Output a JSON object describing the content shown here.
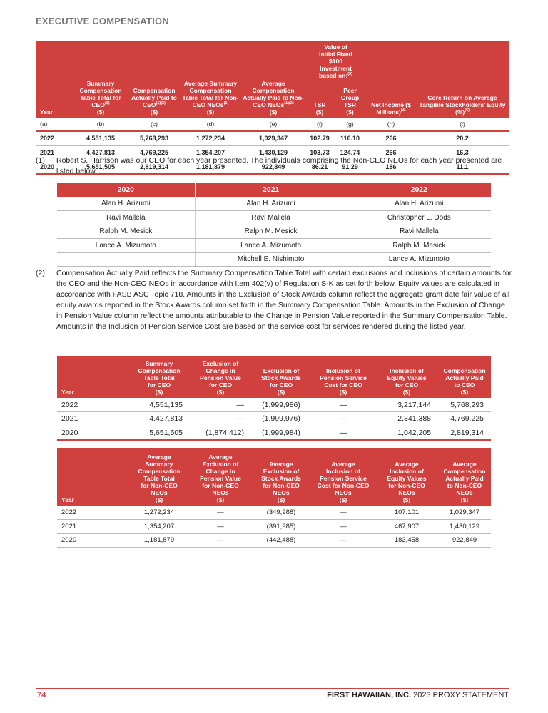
{
  "section_title": "EXECUTIVE COMPENSATION",
  "table1": {
    "headers": {
      "year": "Year",
      "b": "Summary Compensation Table Total for CEO",
      "b_sup": "(1)",
      "c": "Compensation Actually Paid to CEO",
      "c_sup": "(1)(2)",
      "d": "Average Summary Compensation Table Total for Non-CEO NEOs",
      "d_sup": "(1)",
      "e": "Average Compensation Actually Paid to Non-CEO NEOs",
      "e_sup": "(1)(2)",
      "group": "Value of Initial Fixed $100 Investment based on:",
      "group_sup": "(3)",
      "f": "TSR",
      "g": "Peer Group TSR",
      "h": "Net Income ($ Millions)",
      "h_sup": "(4)",
      "i": "Core Return on Average Tangible Stockholders' Equity (%)",
      "i_sup": "(5)",
      "unit": "($)"
    },
    "letters": [
      "(a)",
      "(b)",
      "(c)",
      "(d)",
      "(e)",
      "(f)",
      "(g)",
      "(h)",
      "(i)"
    ],
    "rows": [
      [
        "2022",
        "4,551,135",
        "5,768,293",
        "1,272,234",
        "1,029,347",
        "102.79",
        "116.10",
        "266",
        "20.2"
      ],
      [
        "2021",
        "4,427,813",
        "4,769,225",
        "1,354,207",
        "1,430,129",
        "103.73",
        "124.74",
        "266",
        "16.3"
      ],
      [
        "2020",
        "5,651,505",
        "2,819,314",
        "1,181,879",
        "922,849",
        "86.21",
        "91.29",
        "186",
        "11.1"
      ]
    ]
  },
  "footnote1": {
    "num": "(1)",
    "text": "Robert S. Harrison was our CEO for each year presented. The individuals comprising the Non-CEO NEOs for each year presented are listed below."
  },
  "neo_table": {
    "headers": [
      "2020",
      "2021",
      "2022"
    ],
    "rows": [
      [
        "Alan H. Arizumi",
        "Alan H. Arizumi",
        "Alan H. Arizumi"
      ],
      [
        "Ravi Mallela",
        "Ravi Mallela",
        "Christopher L. Dods"
      ],
      [
        "Ralph M. Mesick",
        "Ralph M. Mesick",
        "Ravi Mallela"
      ],
      [
        "Lance A. Mizumoto",
        "Lance A. Mizumoto",
        "Ralph M. Mesick"
      ],
      [
        "",
        "Mitchell E. Nishimoto",
        "Lance A. Mizumoto"
      ]
    ]
  },
  "footnote2": {
    "num": "(2)",
    "text": "Compensation Actually Paid reflects the Summary Compensation Table Total with certain exclusions and inclusions of certain amounts for the CEO and the Non-CEO NEOs in accordance with Item 402(v) of Regulation S-K as set forth below. Equity values are calculated in accordance with FASB ASC Topic 718. Amounts in the Exclusion of Stock Awards column reflect the aggregate grant date fair value of all equity awards reported in the Stock Awards column set forth in the Summary Compensation Table. Amounts in the Exclusion of Change in Pension Value column reflect the amounts attributable to the Change in Pension Value reported in the Summary Compensation Table. Amounts in the Inclusion of Pension Service Cost are based on the service cost for services rendered during the listed year."
  },
  "ceo_table": {
    "headers": [
      [
        "Year"
      ],
      [
        "Summary",
        "Compensation",
        "Table Total",
        "for CEO",
        "($)"
      ],
      [
        "Exclusion of",
        "Change in",
        "Pension Value",
        "for CEO",
        "($)"
      ],
      [
        "Exclusion of",
        "Stock Awards",
        "for CEO",
        "($)"
      ],
      [
        "Inclusion of",
        "Pension Service",
        "Cost for CEO",
        "($)"
      ],
      [
        "Inclusion of",
        "Equity Values",
        "for CEO",
        "($)"
      ],
      [
        "Compensation",
        "Actually Paid",
        "to CEO",
        "($)"
      ]
    ],
    "rows": [
      [
        "2022",
        "4,551,135",
        "—",
        "(1,999,986)",
        "—",
        "3,217,144",
        "5,768,293"
      ],
      [
        "2021",
        "4,427,813",
        "—",
        "(1,999,976)",
        "—",
        "2,341,388",
        "4,769,225"
      ],
      [
        "2020",
        "5,651,505",
        "(1,874,412)",
        "(1,999,984)",
        "—",
        "1,042,205",
        "2,819,314"
      ]
    ]
  },
  "neo_avg_table": {
    "headers": [
      [
        "Year"
      ],
      [
        "Average",
        "Summary",
        "Compensation",
        "Table Total",
        "for Non-CEO",
        "NEOs",
        "($)"
      ],
      [
        "Average",
        "Exclusion of",
        "Change in",
        "Pension Value",
        "for Non-CEO",
        "NEOs",
        "($)"
      ],
      [
        "Average",
        "Exclusion of",
        "Stock Awards",
        "for Non-CEO",
        "NEOs",
        "($)"
      ],
      [
        "Average",
        "Inclusion of",
        "Pension Service",
        "Cost for Non-CEO",
        "NEOs",
        "($)"
      ],
      [
        "Average",
        "Inclusion of",
        "Equity Values",
        "for Non-CEO",
        "NEOs",
        "($)"
      ],
      [
        "Average",
        "Compensation",
        "Actually Paid",
        "to Non-CEO",
        "NEOs",
        "($)"
      ]
    ],
    "rows": [
      [
        "2022",
        "1,272,234",
        "—",
        "(349,988)",
        "—",
        "107,101",
        "1,029,347"
      ],
      [
        "2021",
        "1,354,207",
        "—",
        "(391,985)",
        "—",
        "467,907",
        "1,430,129"
      ],
      [
        "2020",
        "1,181,879",
        "—",
        "(442,488)",
        "—",
        "183,458",
        "922,849"
      ]
    ]
  },
  "footer": {
    "page": "74",
    "company": "FIRST HAWAIIAN, INC.",
    "doc": " 2023 PROXY STATEMENT"
  },
  "colors": {
    "accent": "#d0403f"
  }
}
